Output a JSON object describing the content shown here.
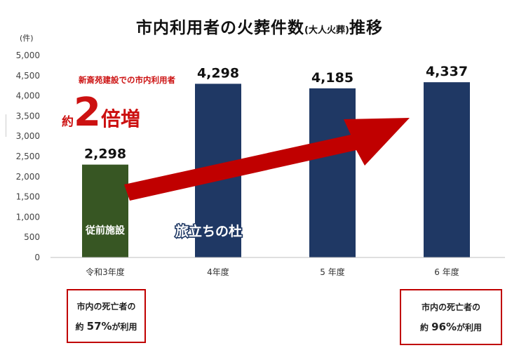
{
  "title": {
    "main": "市内利用者の火葬件数",
    "sub": "(大人火葬)",
    "suffix": "推移"
  },
  "unit_label": "(件)",
  "note": "新斎苑建設での市内利用者",
  "increase": {
    "prefix": "約",
    "number": "2",
    "suffix": "倍増"
  },
  "bar_inner_label": "従前施設",
  "facility_label": "旅立ちの杜",
  "box_left": {
    "line1": "市内の死亡者の",
    "prefix": "約",
    "pct": "57%",
    "suffix": "が利用"
  },
  "box_right": {
    "line1": "市内の死亡者の",
    "prefix": "約",
    "pct": "96%",
    "suffix": "が利用"
  },
  "colors": {
    "old_bar": "#375623",
    "new_bar": "#1f3864",
    "accent": "#c00000",
    "arrow": "#c00000"
  },
  "chart_data": {
    "type": "bar",
    "categories": [
      "令和3年度",
      "4年度",
      "5 年度",
      "6 年度"
    ],
    "values": [
      2298,
      4298,
      4185,
      4337
    ],
    "data_labels": [
      "2,298",
      "4,298",
      "4,185",
      "4,337"
    ],
    "bar_colors": [
      "#375623",
      "#1f3864",
      "#1f3864",
      "#1f3864"
    ],
    "y_ticks": [
      "0",
      "500",
      "1,000",
      "1,500",
      "2,000",
      "2,500",
      "3,000",
      "3,500",
      "4,000",
      "4,500",
      "5,000"
    ],
    "ylim": [
      0,
      5000
    ],
    "grid": false
  }
}
